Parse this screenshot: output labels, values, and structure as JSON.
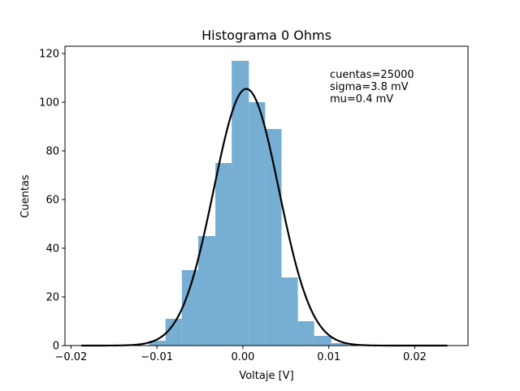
{
  "chart_data": {
    "type": "bar",
    "title": "Histograma 0 Ohms",
    "xlabel": "Voltaje [V]",
    "ylabel": "Cuentas",
    "xlim": [
      -0.0207,
      0.0262
    ],
    "ylim": [
      0,
      123
    ],
    "xticks": [
      {
        "value": -0.02,
        "label": "−0.02"
      },
      {
        "value": -0.01,
        "label": "−0.01"
      },
      {
        "value": 0.0,
        "label": "0.00"
      },
      {
        "value": 0.01,
        "label": "0.01"
      },
      {
        "value": 0.02,
        "label": "0.02"
      }
    ],
    "yticks": [
      {
        "value": 0,
        "label": "0"
      },
      {
        "value": 20,
        "label": "20"
      },
      {
        "value": 40,
        "label": "40"
      },
      {
        "value": 60,
        "label": "60"
      },
      {
        "value": 80,
        "label": "80"
      },
      {
        "value": 100,
        "label": "100"
      },
      {
        "value": 120,
        "label": "120"
      }
    ],
    "grid": false,
    "histogram": {
      "color": "#77aed3",
      "bins": [
        {
          "x0": -0.0109,
          "x1": -0.009,
          "count": 2
        },
        {
          "x0": -0.009,
          "x1": -0.0071,
          "count": 11
        },
        {
          "x0": -0.0071,
          "x1": -0.0052,
          "count": 31
        },
        {
          "x0": -0.0052,
          "x1": -0.0032,
          "count": 45
        },
        {
          "x0": -0.0032,
          "x1": -0.0013,
          "count": 75
        },
        {
          "x0": -0.0013,
          "x1": 0.0007,
          "count": 117
        },
        {
          "x0": 0.0007,
          "x1": 0.0026,
          "count": 100
        },
        {
          "x0": 0.0026,
          "x1": 0.0045,
          "count": 89
        },
        {
          "x0": 0.0045,
          "x1": 0.0064,
          "count": 28
        },
        {
          "x0": 0.0064,
          "x1": 0.0083,
          "count": 10
        },
        {
          "x0": 0.0083,
          "x1": 0.0103,
          "count": 4
        },
        {
          "x0": 0.0103,
          "x1": 0.0122,
          "count": 1
        }
      ]
    },
    "fit_curve": {
      "type": "gaussian",
      "color": "#000000",
      "mu": 0.0004,
      "sigma": 0.0038,
      "amplitude": 105.5,
      "x_range": [
        -0.0188,
        0.0238
      ]
    },
    "annotations": [
      "cuentas=25000",
      "sigma=3.8 mV",
      "mu=0.4 mV"
    ]
  }
}
